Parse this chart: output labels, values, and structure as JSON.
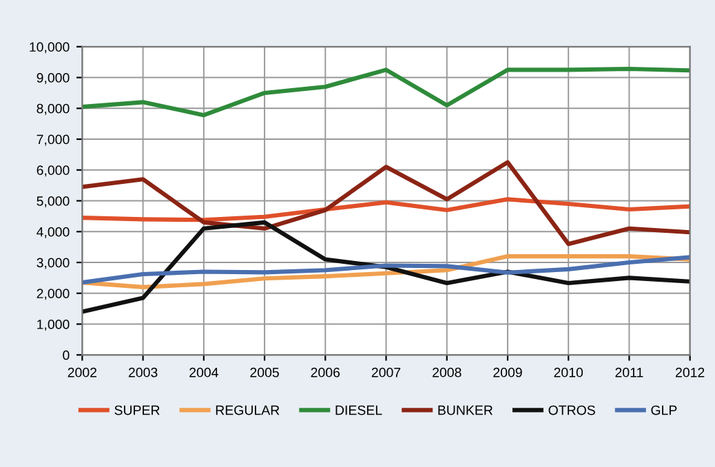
{
  "chart_data": {
    "type": "line",
    "x": [
      2002,
      2003,
      2004,
      2005,
      2006,
      2007,
      2008,
      2009,
      2010,
      2011,
      2012
    ],
    "series": [
      {
        "name": "SUPER",
        "color": "#e0502a",
        "values": [
          4450,
          4400,
          4380,
          4480,
          4720,
          4950,
          4700,
          5050,
          4900,
          4720,
          4820
        ]
      },
      {
        "name": "REGULAR",
        "color": "#f0a050",
        "values": [
          2350,
          2200,
          2300,
          2480,
          2550,
          2650,
          2750,
          3200,
          3200,
          3200,
          3100
        ]
      },
      {
        "name": "DIESEL",
        "color": "#2e8b3a",
        "values": [
          8050,
          8200,
          7780,
          8500,
          8700,
          9250,
          8100,
          9250,
          9250,
          9280,
          9230
        ]
      },
      {
        "name": "BUNKER",
        "color": "#8b2414",
        "values": [
          5450,
          5700,
          4300,
          4100,
          4700,
          6100,
          5050,
          6250,
          3600,
          4100,
          3980
        ]
      },
      {
        "name": "OTROS",
        "color": "#111111",
        "values": [
          1400,
          1850,
          4100,
          4300,
          3100,
          2850,
          2330,
          2700,
          2330,
          2500,
          2380
        ]
      },
      {
        "name": "GLP",
        "color": "#4a6fb0",
        "values": [
          2350,
          2620,
          2700,
          2680,
          2750,
          2900,
          2880,
          2670,
          2780,
          3000,
          3170
        ]
      }
    ],
    "xlim": [
      2002,
      2012
    ],
    "xticks": [
      2002,
      2003,
      2004,
      2005,
      2006,
      2007,
      2008,
      2009,
      2010,
      2011,
      2012
    ],
    "ylim": [
      0,
      10000
    ],
    "yticks": [
      {
        "value": 0,
        "label": "0"
      },
      {
        "value": 1000,
        "label": "1,000"
      },
      {
        "value": 2000,
        "label": "2,000"
      },
      {
        "value": 3000,
        "label": "3,000"
      },
      {
        "value": 4000,
        "label": "4,000"
      },
      {
        "value": 5000,
        "label": "5,000"
      },
      {
        "value": 6000,
        "label": "6,000"
      },
      {
        "value": 7000,
        "label": "7,000"
      },
      {
        "value": 8000,
        "label": "8,000"
      },
      {
        "value": 9000,
        "label": "9,000"
      },
      {
        "value": 10000,
        "label": "10,000"
      }
    ],
    "grid": true,
    "legend": "bottom",
    "marker": "none",
    "line_style": "solid"
  }
}
